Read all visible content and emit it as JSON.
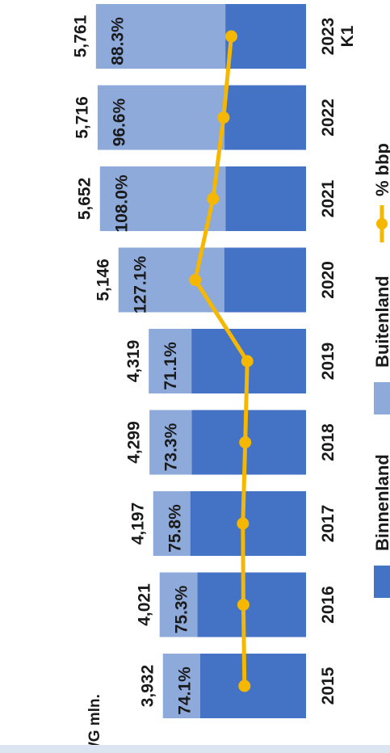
{
  "chart_data": {
    "type": "bar",
    "orientation": "rotated-90-clockwise",
    "categories": [
      "2015",
      "2016",
      "2017",
      "2018",
      "2019",
      "2020",
      "2021",
      "2022",
      "2023 K1"
    ],
    "series": [
      {
        "name": "Binnenland",
        "values": [
          2912,
          2993,
          3185,
          3148,
          3152,
          2258,
          2224,
          2249,
          2226
        ],
        "color": "#4472c4"
      },
      {
        "name": "Buitenland",
        "values": [
          1020,
          1028,
          1012,
          1151,
          1167,
          2888,
          3428,
          3467,
          3535
        ],
        "color": "#8eaadb"
      }
    ],
    "totals_labels": [
      "3,932",
      "4,021",
      "4,197",
      "4,299",
      "4,319",
      "5,146",
      "5,652",
      "5,716",
      "5,761"
    ],
    "line_series": {
      "name": "% bbp",
      "values": [
        74.1,
        75.3,
        75.8,
        73.3,
        71.1,
        127.1,
        108.0,
        96.6,
        88.3
      ],
      "labels": [
        "74.1%",
        "75.3%",
        "75.8%",
        "73.3%",
        "71.1%",
        "127.1%",
        "108.0%",
        "96.6%",
        "88.3%"
      ],
      "color": "#f5b700"
    },
    "ylabel": "AWG mln.",
    "legend": [
      "Binnenland",
      "Buitenland",
      "% bbp"
    ],
    "legend_position": "bottom",
    "ylim": [
      0,
      6000
    ],
    "line_ylim": [
      0,
      200
    ]
  }
}
